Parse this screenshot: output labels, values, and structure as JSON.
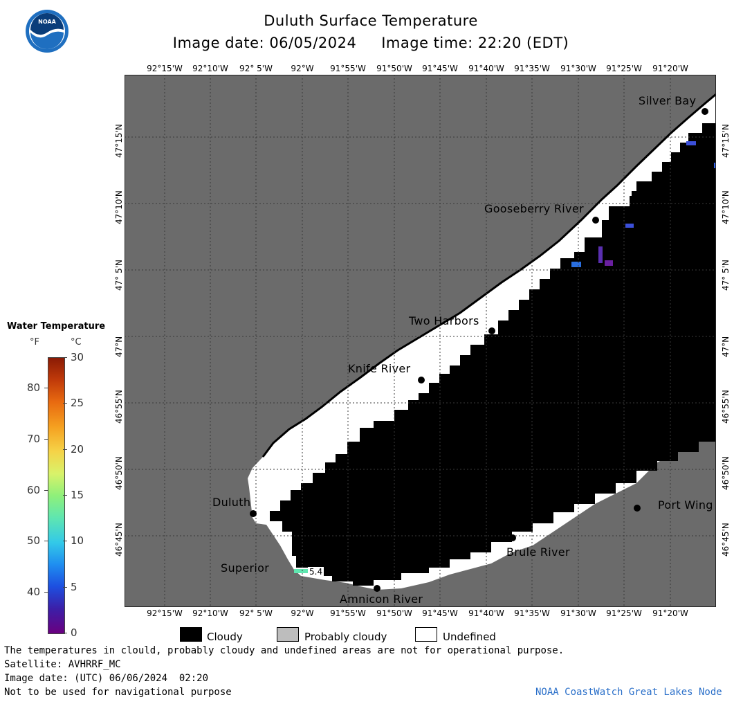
{
  "title": "Duluth Surface Temperature",
  "image_date_line": "Image date: 06/05/2024     Image time: 22:20 (EDT)",
  "logo": {
    "text": "NOAA",
    "colors": {
      "outer": "#1f6fc0",
      "inner": "#0a3d7a",
      "wave": "#ffffff"
    }
  },
  "lon_labels": [
    "92°15'W",
    "92°10'W",
    "92° 5'W",
    "92°W",
    "91°55'W",
    "91°50'W",
    "91°45'W",
    "91°40'W",
    "91°35'W",
    "91°30'W",
    "91°25'W",
    "91°20'W"
  ],
  "lat_labels": [
    "47°15'N",
    "47°10'N",
    "47° 5'N",
    "47°N",
    "46°55'N",
    "46°50'N",
    "46°45'N"
  ],
  "places": {
    "silver_bay": "Silver Bay",
    "gooseberry_river": "Gooseberry River",
    "two_harbors": "Two Harbors",
    "knife_river": "Knife River",
    "duluth": "Duluth",
    "superior": "Superior",
    "amnicon_river": "Amnicon River",
    "brule_river": "Brule River",
    "port_wing": "Port Wing"
  },
  "temp_readout": "5.4",
  "colorbar": {
    "title": "Water Temperature",
    "unit_f": "°F",
    "unit_c": "°C",
    "f_ticks": [
      "80",
      "70",
      "60",
      "50",
      "40"
    ],
    "c_ticks": [
      "30",
      "25",
      "20",
      "15",
      "10",
      "5",
      "0"
    ]
  },
  "legend": {
    "cloudy": "Cloudy",
    "probably_cloudy": "Probably cloudy",
    "undefined": "Undefined"
  },
  "colors": {
    "land": "#6b6b6b",
    "cloud": "#000000",
    "undefined": "#ffffff",
    "probably_cloudy": "#bdbdbd",
    "grid": "#3a3a3a",
    "credit": "#2a6fc9"
  },
  "footer": {
    "disclaimer": "The temperatures in clould, probably cloudy and undefined areas are not for operational purpose.",
    "satellite": "Satellite: AVHRRF_MC",
    "utc_date": "Image date: (UTC) 06/06/2024  02:20",
    "nav_warning": "Not to be used for navigational purpose",
    "credit": "NOAA CoastWatch Great Lakes Node"
  }
}
